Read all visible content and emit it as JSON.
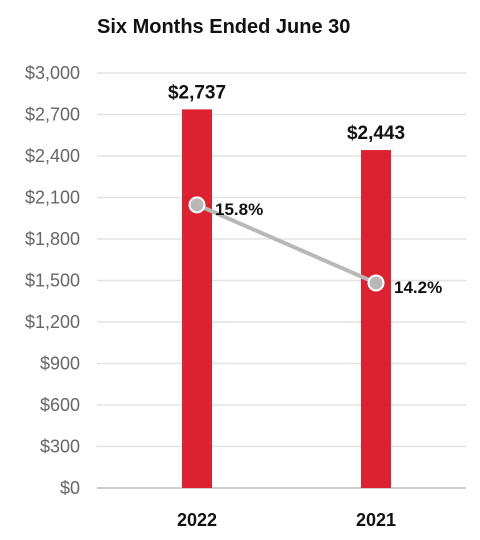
{
  "chart_data": {
    "type": "bar",
    "title": "Six Months Ended June 30",
    "categories": [
      "2022",
      "2021"
    ],
    "series": [
      {
        "values": [
          2737,
          2443
        ],
        "labels": [
          "$2,737",
          "$2,443"
        ],
        "color": "#dc2231"
      },
      {
        "type": "line",
        "values": [
          15.8,
          14.2
        ],
        "labels": [
          "15.8%",
          "14.2%"
        ],
        "color": "#b8b8b8"
      }
    ],
    "yticks": [
      "$0",
      "$300",
      "$600",
      "$900",
      "$1,200",
      "$1,500",
      "$1,800",
      "$2,100",
      "$2,400",
      "$2,700",
      "$3,000"
    ],
    "ylim": [
      0,
      3000
    ],
    "grid": true,
    "legend": "none"
  }
}
